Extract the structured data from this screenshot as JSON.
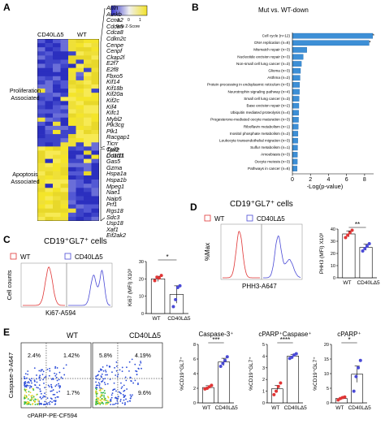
{
  "panels": {
    "A": {
      "label": "A",
      "group_left": "CD40LΔ5",
      "group_right": "WT",
      "legend_title": "Row Z-Score",
      "legend_ticks": [
        "-1",
        "0",
        "1"
      ],
      "proliferation_label_line1": "Proliferation",
      "proliferation_label_line2": "Associated",
      "apoptosis_label_line1": "Apoptosis",
      "apoptosis_label_line2": "Associated",
      "proliferation_genes": [
        "Anln",
        "Aurkb",
        "Ccna2",
        "Cdca5",
        "Cdca8",
        "Cdkn2c",
        "Cenpe",
        "Cenpf",
        "Ckap2l",
        "E2f7",
        "E2f8",
        "Fbxo5",
        "Kif14",
        "Kif18b",
        "Kif20a",
        "Kif2c",
        "Kif4",
        "Kifc1",
        "Mybl2",
        "Plk3cg",
        "Plk1",
        "Racgap1",
        "Ticrr",
        "Tpx2",
        "Cd1d1"
      ],
      "apoptosis_genes": [
        "Cul9",
        "Dcaf11",
        "Gas5",
        "Gzma",
        "Hspa1a",
        "Hspa1b",
        "Mpeg1",
        "Nae1",
        "Naip5",
        "Prf1",
        "Rgs18",
        "Sdc3",
        "Usp18",
        "Xaf1",
        "Eif2ak2"
      ]
    },
    "B": {
      "label": "B",
      "title": "Mut vs. WT-down",
      "xlabel": "-Log(p-value)",
      "xticks": [
        "0",
        "2",
        "4",
        "6",
        "8"
      ],
      "bar_color": "#3d8fd6"
    },
    "C": {
      "label": "C",
      "title": "CD19⁺GL7⁺ cells",
      "legend_wt": "WT",
      "legend_cd40": "CD40LΔ5",
      "ylabel": "Cell counts",
      "xlabel": "Ki67-A594",
      "bar_ylabel": "Ki67 (MFI) X10³",
      "yticks": [
        "0",
        "10",
        "20",
        "30"
      ],
      "sig": "*",
      "cat_wt": "WT",
      "cat_cd40": "CD40LΔ5"
    },
    "D": {
      "label": "D",
      "title": "CD19⁺GL7⁺ cells",
      "legend_wt": "WT",
      "legend_cd40": "CD40LΔ5",
      "ylabel": "%Max",
      "xlabel": "PHH3-A647",
      "bar_ylabel": "PHH3 (MFI) X10³",
      "yticks": [
        "0",
        "10",
        "20",
        "30",
        "40"
      ],
      "sig": "**",
      "cat_wt": "WT",
      "cat_cd40": "CD40LΔ5"
    },
    "E": {
      "label": "E",
      "wt_title": "WT",
      "cd40_title": "CD40LΔ5",
      "ylabel": "Caspase-3-A647",
      "xlabel": "cPARP-PE-CF594",
      "wt_quadrants": [
        "2.4%",
        "1.42%",
        "1.7%"
      ],
      "cd40_quadrants": [
        "5.8%",
        "4.19%",
        "9.6%"
      ],
      "bar1_title": "Caspase-3⁺",
      "bar1_yticks": [
        "0",
        "2",
        "4",
        "6",
        "8"
      ],
      "bar1_sig": "***",
      "bar2_title": "cPARP⁺Caspase⁺",
      "bar2_yticks": [
        "0",
        "1",
        "2",
        "3",
        "4",
        "5"
      ],
      "bar2_sig": "****",
      "bar3_title": "cPARP⁺",
      "bar3_yticks": [
        "0",
        "5",
        "10",
        "15",
        "20"
      ],
      "bar3_sig": "*",
      "bar_ylabel": "%CD19⁺GL7⁺",
      "cat_wt": "WT",
      "cat_cd40": "CD40LΔ5"
    }
  },
  "chart_data": [
    {
      "type": "bar",
      "panel": "B",
      "title": "Mut vs. WT-down",
      "orientation": "horizontal",
      "categories": [
        "Cell cycle (n=12)",
        "DNA replication (n=8)",
        "Mismatch repair (n=3)",
        "Nucleotide excision repair (n=3)",
        "Non-small cell lung cancer (n=3)",
        "Glioma (n=3)",
        "Asthma (n=2)",
        "Protein processing in endoplasmic reticulum (n=5)",
        "Neurotrophin signaling pathway (n=4)",
        "Small cell lung cancer (n=3)",
        "Base excision repair (n=2)",
        "Ubiquitin mediated proteolysis (n=4)",
        "Progesterone-mediated oocyte maturation (n=3)",
        "Riboflavin metabolism (n=1)",
        "Inositol phosphate metabolism (n=2)",
        "Leukocyte transendothelial migration (n=3)",
        "Sulfur metabolism (n=1)",
        "Amoebiasis (n=3)",
        "Oocyte meiosis (n=3)",
        "Pathways in cancer (n=6)"
      ],
      "values": [
        8.9,
        8.5,
        1.6,
        1.2,
        1.0,
        0.9,
        0.85,
        0.8,
        0.78,
        0.75,
        0.72,
        0.7,
        0.68,
        0.65,
        0.62,
        0.6,
        0.58,
        0.56,
        0.55,
        0.53
      ],
      "xlabel": "-Log(p-value)",
      "xlim": [
        0,
        9
      ]
    },
    {
      "type": "bar",
      "panel": "C",
      "categories": [
        "WT",
        "CD40LΔ5"
      ],
      "values": [
        20,
        11
      ],
      "errors": [
        1.5,
        5
      ],
      "points": [
        [
          19,
          21,
          20.5,
          22
        ],
        [
          4,
          8,
          15,
          16
        ]
      ],
      "ylabel": "Ki67 (MFI) X10³",
      "ylim": [
        0,
        30
      ]
    },
    {
      "type": "bar",
      "panel": "D",
      "categories": [
        "WT",
        "CD40LΔ5"
      ],
      "values": [
        36,
        25
      ],
      "errors": [
        2.5,
        2.5
      ],
      "points": [
        [
          33,
          35,
          37,
          39
        ],
        [
          22,
          24,
          26,
          28
        ]
      ],
      "ylabel": "PHH3 (MFI) X10³",
      "ylim": [
        0,
        40
      ]
    },
    {
      "type": "bar",
      "panel": "E",
      "title": "Caspase-3⁺",
      "categories": [
        "WT",
        "CD40LΔ5"
      ],
      "values": [
        2.1,
        5.6
      ],
      "errors": [
        0.25,
        0.5
      ],
      "points": [
        [
          1.9,
          2.0,
          2.2,
          2.4
        ],
        [
          5.0,
          5.4,
          5.8,
          6.3
        ]
      ],
      "ylabel": "%CD19⁺GL7⁺",
      "ylim": [
        0,
        8
      ]
    },
    {
      "type": "bar",
      "panel": "E",
      "title": "cPARP⁺Caspase⁺",
      "categories": [
        "WT",
        "CD40LΔ5"
      ],
      "values": [
        1.2,
        4.0
      ],
      "errors": [
        0.3,
        0.15
      ],
      "points": [
        [
          0.7,
          1.0,
          1.4,
          1.7
        ],
        [
          3.8,
          3.9,
          4.1,
          4.2
        ]
      ],
      "ylabel": "%CD19⁺GL7⁺",
      "ylim": [
        0,
        5
      ]
    },
    {
      "type": "bar",
      "panel": "E",
      "title": "cPARP⁺",
      "categories": [
        "WT",
        "CD40LΔ5"
      ],
      "values": [
        1.5,
        9.8
      ],
      "errors": [
        0.3,
        2.8
      ],
      "points": [
        [
          1.0,
          1.5,
          1.8,
          2.0
        ],
        [
          4.0,
          9.0,
          12.0,
          14.5
        ]
      ],
      "ylabel": "%CD19⁺GL7⁺",
      "ylim": [
        0,
        20
      ]
    }
  ]
}
